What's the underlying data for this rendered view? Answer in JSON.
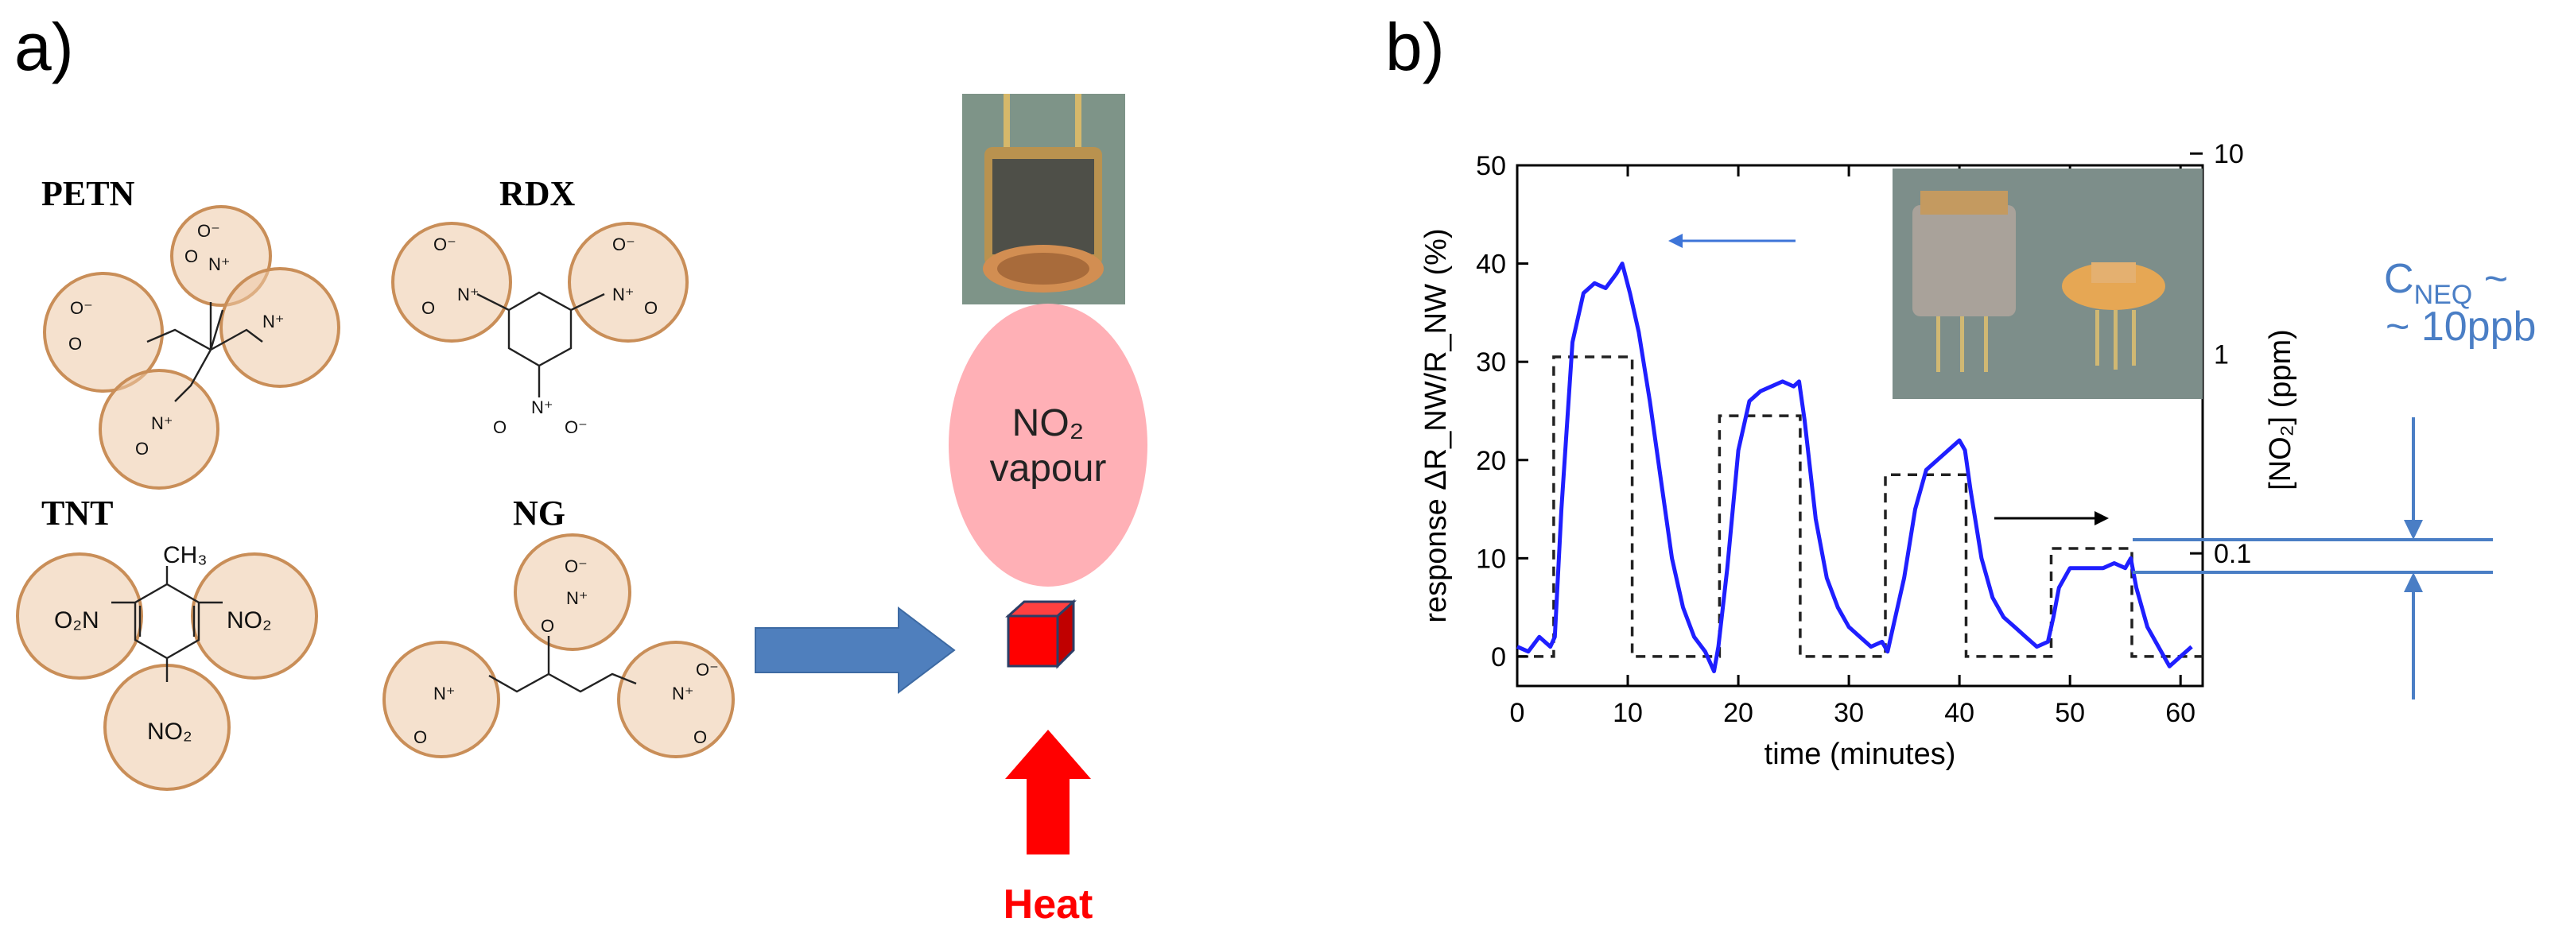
{
  "panels": {
    "a_label": "a)",
    "b_label": "b)"
  },
  "molecules": {
    "petn": {
      "name": "PETN",
      "groups": [
        "O⁻",
        "O",
        "N⁺",
        "O"
      ]
    },
    "rdx": {
      "name": "RDX",
      "group_o_minus": "O⁻",
      "group_n_plus": "N⁺",
      "group_o": "O",
      "ring_n": "N"
    },
    "tnt": {
      "name": "TNT",
      "methyl": "CH₃",
      "nitro_left": "O₂N",
      "nitro_right": "NO₂",
      "nitro_bottom": "NO₂"
    },
    "ng": {
      "name": "NG",
      "o": "O",
      "n_plus": "N⁺",
      "o_minus": "O⁻"
    }
  },
  "process": {
    "vapour_line1": "NO₂",
    "vapour_line2": "vapour",
    "heat_label": "Heat",
    "colors": {
      "arrow_blue": "#4f7fbd",
      "heat_red": "#ff0000",
      "cube_red": "#ff0000",
      "vapour_pink": "#ffb0b6"
    }
  },
  "chart_data": {
    "type": "line",
    "xlabel": "time (minutes)",
    "ylabel": "response ΔR_NW/R_NW (%)",
    "y2label": "[NO₂] (ppm)",
    "xlim": [
      0,
      62
    ],
    "ylim": [
      -3,
      50
    ],
    "xticks": [
      "0",
      "10",
      "20",
      "30",
      "40",
      "50",
      "60"
    ],
    "yticks": [
      "0",
      "10",
      "20",
      "30",
      "40",
      "50"
    ],
    "y2ticks": [
      "0.1",
      "1",
      "10"
    ],
    "y2_scale": "log",
    "series": [
      {
        "style": "solid",
        "color": "#1f1fff",
        "x": [
          0,
          1,
          2,
          3,
          3.4,
          4,
          5,
          6,
          7,
          8,
          9,
          9.5,
          10.2,
          11,
          12,
          13,
          14,
          15,
          16,
          17,
          17.8,
          18.2,
          19,
          20,
          21,
          22,
          23,
          24,
          25,
          25.5,
          26,
          27,
          28,
          29,
          30,
          31,
          32,
          33,
          33.5,
          34,
          35,
          36,
          37,
          38,
          39,
          40,
          40.5,
          41,
          42,
          43,
          44,
          45,
          46,
          47,
          48,
          48.5,
          49,
          50,
          51,
          52,
          53,
          54,
          55,
          55.5,
          56,
          57,
          58,
          59,
          60,
          61
        ],
        "y": [
          1,
          0.5,
          2,
          1,
          2,
          15,
          32,
          37,
          38,
          37.5,
          39,
          40,
          37,
          33,
          26,
          18,
          10,
          5,
          2,
          0.5,
          -1.5,
          1,
          9,
          21,
          26,
          27,
          27.5,
          28,
          27.5,
          28,
          24,
          14,
          8,
          5,
          3,
          2,
          1,
          1.5,
          0.5,
          3,
          8,
          15,
          19,
          20,
          21,
          22,
          21,
          17,
          10,
          6,
          4,
          3,
          2,
          1,
          1.5,
          4,
          7,
          9,
          9,
          9,
          9,
          9.5,
          9,
          10,
          7,
          3,
          1,
          -1,
          0,
          1
        ]
      },
      {
        "style": "dashed",
        "color": "#222222",
        "x": [
          0,
          3.3,
          3.3,
          10.4,
          10.4,
          18.3,
          18.3,
          25.6,
          25.6,
          33.3,
          33.3,
          40.6,
          40.6,
          48.3,
          48.3,
          55.6,
          55.6,
          62
        ],
        "y": [
          0,
          0,
          30.5,
          30.5,
          0,
          0,
          24.5,
          24.5,
          0,
          0,
          18.5,
          18.5,
          0,
          0,
          11,
          11,
          0,
          0
        ]
      }
    ],
    "annotations": {
      "cneq_line1": "C",
      "cneq_sub": "NEQ",
      "cneq_tilde": " ~",
      "cneq_line2": "~ 10ppb"
    }
  }
}
